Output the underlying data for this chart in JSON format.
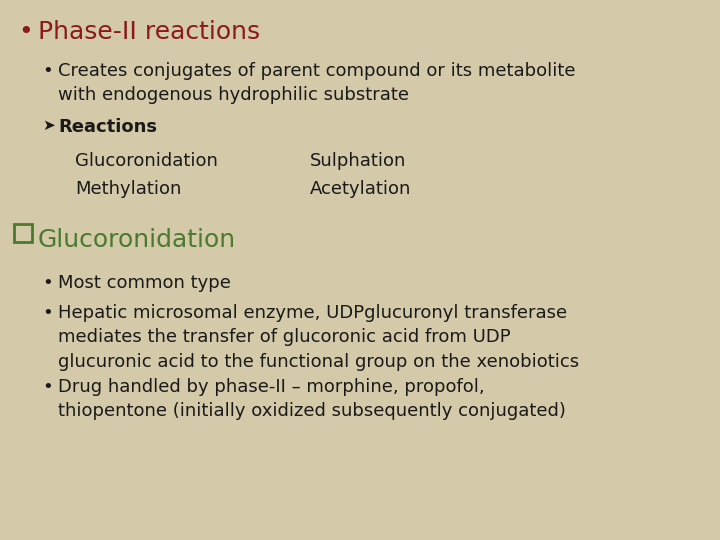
{
  "bg_color": "#d4c9a8",
  "title_color": "#8b1a1a",
  "green_color": "#4a7a2e",
  "black_color": "#1a1a1a",
  "title_text": "Phase-II reactions",
  "title_fontsize": 18,
  "body_fontsize": 13,
  "glucoro_fontsize": 18,
  "bullet1_text": "Creates conjugates of parent compound or its metabolite\nwith endogenous hydrophilic substrate",
  "reactions_label": "Reactions",
  "row1_left": "Glucoronidation",
  "row1_right": "Sulphation",
  "row2_left": "Methylation",
  "row2_right": "Acetylation",
  "glucoro_title": "Glucoronidation",
  "b1": "Most common type",
  "b2": "Hepatic microsomal enzyme, UDPglucuronyl transferase\nmediates the transfer of glucoronic acid from UDP\nglucuronic acid to the functional group on the xenobiotics",
  "b3": "Drug handled by phase-II – morphine, propofol,\nthiopentone (initially oxidized subsequently conjugated)"
}
